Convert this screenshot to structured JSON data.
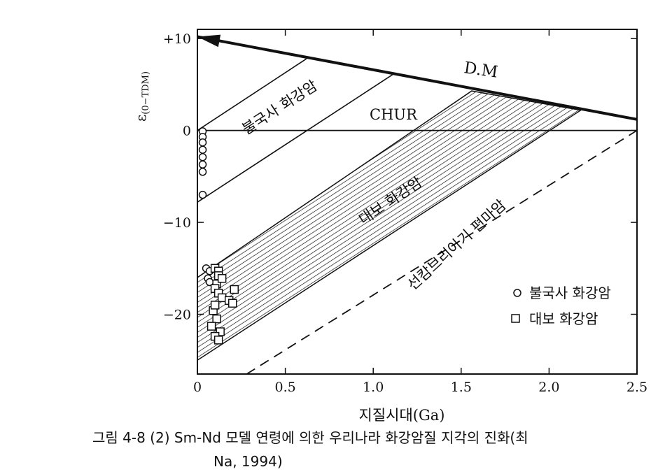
{
  "chart_data": {
    "type": "line",
    "xlabel": "지질시대(Ga)",
    "ylabel": "ε(0-TDM)",
    "xlim": [
      0,
      2.5
    ],
    "ylim": [
      -26.5,
      11
    ],
    "xticks": [
      {
        "value": 0,
        "label": "0"
      },
      {
        "value": 0.5,
        "label": "0.5"
      },
      {
        "value": 1.0,
        "label": "1.0"
      },
      {
        "value": 1.5,
        "label": "1.5"
      },
      {
        "value": 2.0,
        "label": "2.0"
      },
      {
        "value": 2.5,
        "label": "2.5"
      }
    ],
    "yticks": [
      {
        "value": 10,
        "label": "+10"
      },
      {
        "value": 0,
        "label": "0"
      },
      {
        "value": -10,
        "label": "−10"
      },
      {
        "value": -20,
        "label": "−20"
      }
    ],
    "lines": {
      "dm": {
        "label": "D.M",
        "x": [
          2.5,
          0
        ],
        "y": [
          1.2,
          10.2
        ]
      },
      "chur": {
        "label": "CHUR",
        "x": [
          0,
          2.5
        ],
        "y": [
          0,
          0
        ]
      },
      "bulguksa_lower": {
        "x": [
          0,
          1.12
        ],
        "y": [
          -7.8,
          6.2
        ]
      },
      "bulguksa_upper": {
        "x": [
          0,
          0.62
        ],
        "y": [
          0,
          7.8
        ]
      },
      "sincambrian": {
        "x": [
          0.28,
          2.5
        ],
        "y": [
          -26.5,
          0
        ]
      }
    },
    "region_labels": {
      "bulguksa": "불국사 화강암",
      "daebo": "대보 화강암",
      "precambrian": "선캄브리아기 편마암"
    },
    "daebo_band": {
      "upper": {
        "x": [
          0,
          1.56
        ],
        "y": [
          -16,
          4.3
        ]
      },
      "lower": {
        "x": [
          0,
          2.18
        ],
        "y": [
          -25,
          2.2
        ]
      }
    },
    "series": [
      {
        "name": "불국사 화강암",
        "marker": "circle",
        "points": [
          [
            0.03,
            -0.1
          ],
          [
            0.03,
            -0.7
          ],
          [
            0.03,
            -1.3
          ],
          [
            0.03,
            -2.1
          ],
          [
            0.03,
            -2.9
          ],
          [
            0.03,
            -3.7
          ],
          [
            0.03,
            -4.5
          ],
          [
            0.03,
            -7.0
          ],
          [
            0.05,
            -15.0
          ],
          [
            0.07,
            -15.3
          ],
          [
            0.06,
            -16.1
          ],
          [
            0.07,
            -16.5
          ]
        ]
      },
      {
        "name": "대보 화강암",
        "marker": "square",
        "points": [
          [
            0.1,
            -15.0
          ],
          [
            0.12,
            -15.3
          ],
          [
            0.12,
            -15.8
          ],
          [
            0.11,
            -16.7
          ],
          [
            0.1,
            -17.2
          ],
          [
            0.12,
            -17.7
          ],
          [
            0.14,
            -18.2
          ],
          [
            0.18,
            -18.5
          ],
          [
            0.21,
            -17.3
          ],
          [
            0.2,
            -18.8
          ],
          [
            0.09,
            -19.6
          ],
          [
            0.11,
            -20.5
          ],
          [
            0.08,
            -21.3
          ],
          [
            0.13,
            -21.9
          ],
          [
            0.1,
            -22.4
          ],
          [
            0.12,
            -22.8
          ],
          [
            0.14,
            -16.1
          ],
          [
            0.1,
            -19.0
          ]
        ]
      }
    ],
    "legend": {
      "position": "bottom-right"
    }
  },
  "caption": {
    "line1": "그림 4-8 (2)  Sm-Nd 모델 연령에 의한 우리나라 화강암질 지각의 진화(최",
    "line2": "Na, 1994)"
  }
}
